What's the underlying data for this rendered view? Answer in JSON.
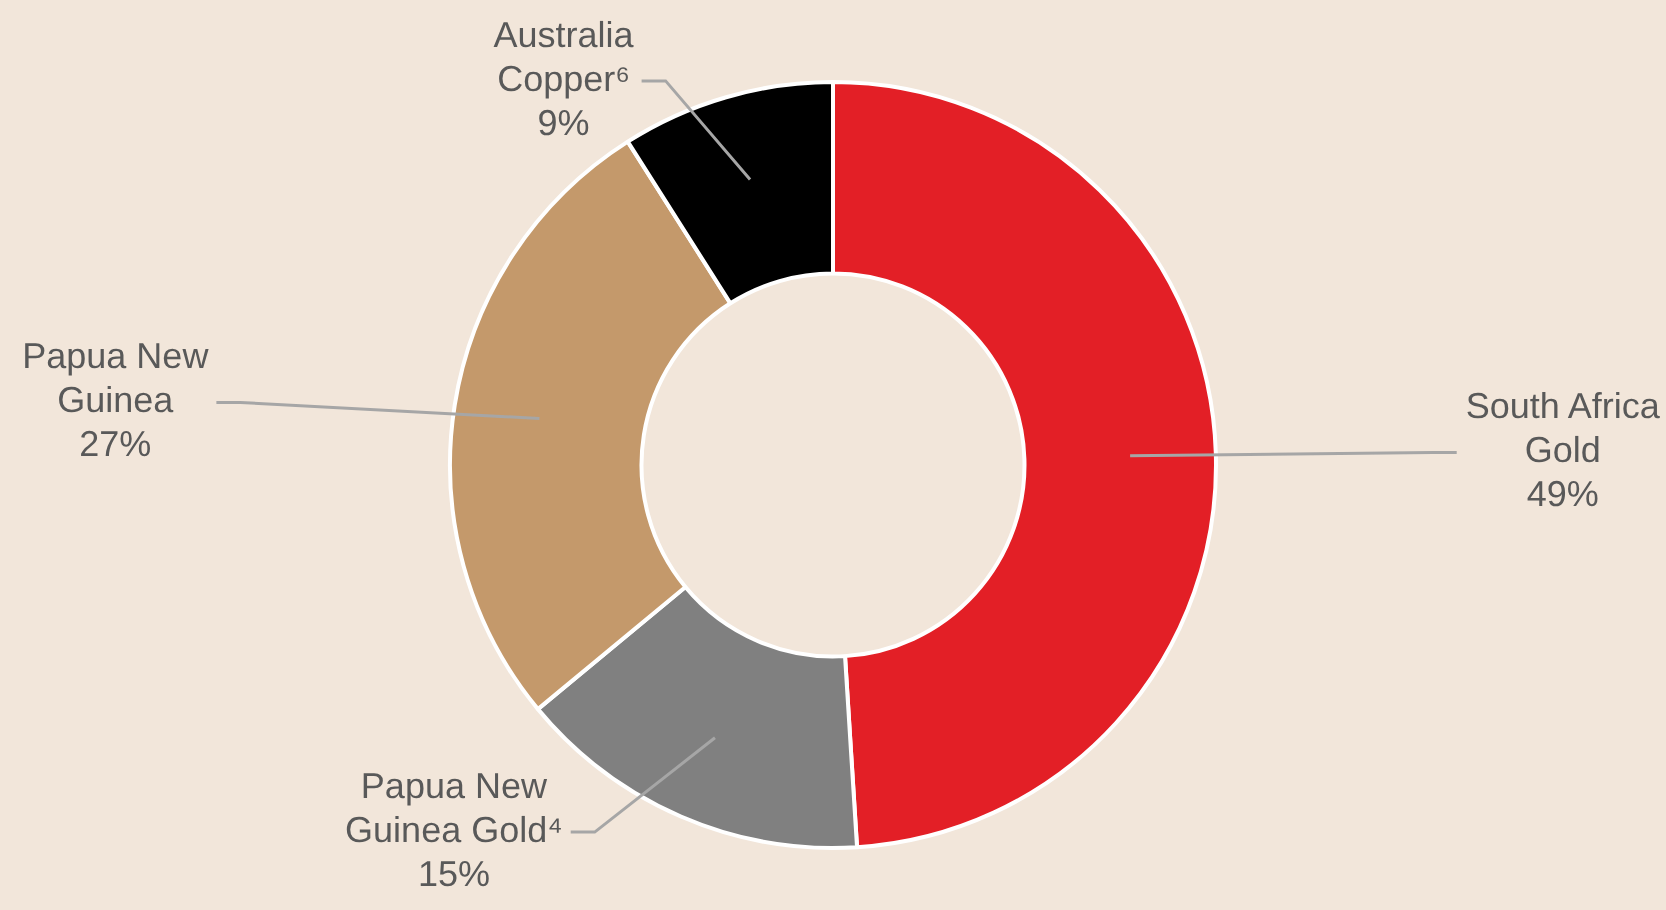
{
  "chart_data": {
    "type": "donut",
    "categories": [
      "South Africa Gold",
      "Papua New Guinea Gold⁴",
      "Papua New Guinea",
      "Australia Copper⁶"
    ],
    "values": [
      49,
      15,
      27,
      9
    ],
    "value_labels": [
      "49%",
      "15%",
      "27%",
      "9%"
    ],
    "colors": [
      "#e31f26",
      "#808080",
      "#c4996b",
      "#000000"
    ],
    "legend": false
  }
}
